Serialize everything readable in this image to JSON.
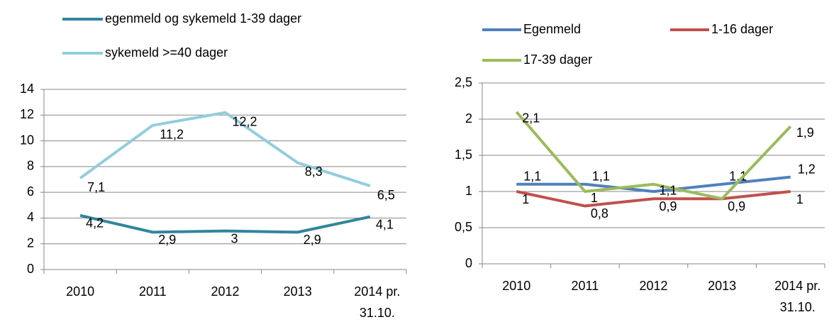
{
  "chart_data": [
    {
      "type": "line",
      "categories": [
        "2010",
        "2011",
        "2012",
        "2013",
        "2014 pr. 31.10."
      ],
      "series": [
        {
          "name": "egenmeld og sykemeld 1-39 dager",
          "color": "#31859c",
          "values": [
            4.2,
            2.9,
            3,
            2.9,
            4.1
          ],
          "value_labels": [
            "4,2",
            "2,9",
            "3",
            "2,9",
            "4,1"
          ]
        },
        {
          "name": "sykemeld >=40 dager",
          "color": "#93cddd",
          "values": [
            7.1,
            11.2,
            12.2,
            8.3,
            6.5
          ],
          "value_labels": [
            "7,1",
            "11,2",
            "12,2",
            "8,3",
            "6,5"
          ]
        }
      ],
      "ylim": [
        0,
        14
      ],
      "yticks": [
        0,
        2,
        4,
        6,
        8,
        10,
        12,
        14
      ],
      "grid": true,
      "legend": "top"
    },
    {
      "type": "line",
      "categories": [
        "2010",
        "2011",
        "2012",
        "2013",
        "2014 pr. 31.10."
      ],
      "series": [
        {
          "name": "Egenmeld",
          "color": "#4f81bd",
          "values": [
            1.1,
            1.1,
            1.0,
            1.1,
            1.2
          ],
          "value_labels": [
            "1,1",
            "1,1",
            null,
            "1,1",
            "1,2"
          ]
        },
        {
          "name": "1-16 dager",
          "color": "#c0504d",
          "values": [
            1,
            0.8,
            0.9,
            0.9,
            1
          ],
          "value_labels": [
            "1",
            "0,8",
            "0,9",
            "0,9",
            "1"
          ]
        },
        {
          "name": "17-39 dager",
          "color": "#9bbb59",
          "values": [
            2.1,
            1,
            1.1,
            0.9,
            1.9
          ],
          "value_labels": [
            "2,1",
            "1",
            "1,1",
            null,
            "1,9"
          ]
        }
      ],
      "ylim": [
        0,
        2.5
      ],
      "yticks": [
        0,
        {
          "value": 0.5,
          "label": "0,5"
        },
        1,
        {
          "value": 1.5,
          "label": "1,5"
        },
        2,
        {
          "value": 2.5,
          "label": "2,5"
        }
      ],
      "grid": true,
      "legend": "top"
    }
  ]
}
